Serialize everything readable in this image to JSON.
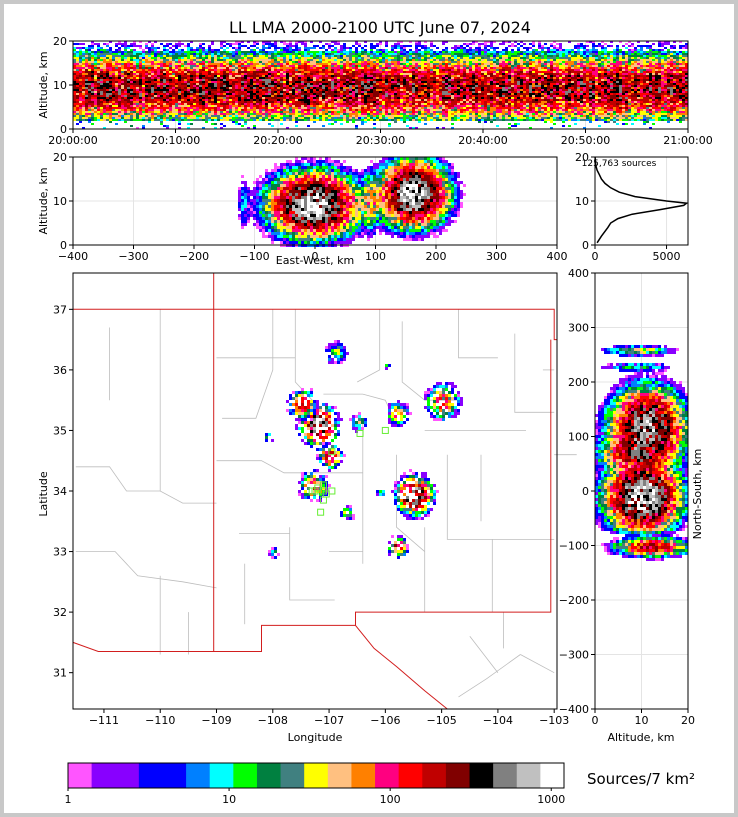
{
  "chart_data": {
    "type": "heatmap",
    "title": "LL LMA 2000-2100 UTC June 07, 2024",
    "source_count_label": "125,763 sources",
    "colorbar": {
      "label": "Sources/7 km²",
      "ticks": [
        "1",
        "10",
        "100",
        "1000"
      ],
      "colors": [
        "#ff55ff",
        "#8800ff",
        "#8800ff",
        "#0000ff",
        "#0000ff",
        "#0080ff",
        "#00ffff",
        "#00ff00",
        "#008040",
        "#408080",
        "#ffff00",
        "#ffc080",
        "#ff8000",
        "#ff0080",
        "#ff0000",
        "#c00000",
        "#800000",
        "#000000",
        "#808080",
        "#c0c0c0",
        "#ffffff"
      ]
    },
    "time_height": {
      "ylabel": "Altitude, km",
      "yticks": [
        "0",
        "10",
        "20"
      ],
      "xticks": [
        "20:00:00",
        "20:10:00",
        "20:20:00",
        "20:30:00",
        "20:40:00",
        "20:50:00",
        "21:00:00"
      ],
      "ylim": [
        0,
        20
      ],
      "xlim_minutes": [
        0,
        60
      ],
      "core_altitude_km": 9.5
    },
    "ew_height": {
      "ylabel": "Altitude, km",
      "xlabel": "East-West, km",
      "xticks": [
        "−400",
        "−300",
        "−200",
        "−100",
        "0",
        "100",
        "200",
        "300",
        "400"
      ],
      "yticks": [
        "0",
        "10",
        "20"
      ],
      "xlim": [
        -400,
        400
      ],
      "ylim": [
        0,
        20
      ],
      "clusters": [
        {
          "x": -5,
          "z": 9.5,
          "w": 90,
          "peak": 1000
        },
        {
          "x": 160,
          "z": 12,
          "w": 70,
          "peak": 1000
        },
        {
          "x": 90,
          "z": 10,
          "w": 25,
          "peak": 60
        },
        {
          "x": -120,
          "z": 10,
          "w": 15,
          "peak": 8
        }
      ]
    },
    "height_hist": {
      "xticks": [
        "0",
        "5000"
      ],
      "yticks": [
        "0",
        "10",
        "20"
      ],
      "xlim": [
        0,
        6500
      ],
      "ylim": [
        0,
        20
      ],
      "profile": [
        [
          0.5,
          150
        ],
        [
          2,
          450
        ],
        [
          4,
          900
        ],
        [
          5,
          1100
        ],
        [
          6,
          1600
        ],
        [
          7,
          2600
        ],
        [
          8,
          4500
        ],
        [
          9,
          6200
        ],
        [
          9.5,
          6400
        ],
        [
          10,
          5000
        ],
        [
          11,
          2800
        ],
        [
          12,
          1700
        ],
        [
          13,
          1100
        ],
        [
          14,
          700
        ],
        [
          15,
          450
        ],
        [
          16,
          300
        ],
        [
          17,
          150
        ],
        [
          18,
          60
        ],
        [
          19,
          25
        ],
        [
          20,
          10
        ]
      ]
    },
    "plan_view": {
      "xlabel": "Longitude",
      "ylabel": "Latitude",
      "xticks": [
        "−111",
        "−110",
        "−109",
        "−108",
        "−107",
        "−106",
        "−105",
        "−104",
        "−103"
      ],
      "yticks": [
        "31",
        "32",
        "33",
        "34",
        "35",
        "36",
        "37"
      ],
      "xlim": [
        -111.55,
        -102.95
      ],
      "ylim": [
        30.4,
        37.6
      ],
      "clusters": [
        {
          "lon": -107.2,
          "lat": 35.1,
          "s": 0.15,
          "peak": 900
        },
        {
          "lon": -107.5,
          "lat": 35.45,
          "s": 0.12,
          "peak": 200
        },
        {
          "lon": -107.0,
          "lat": 34.6,
          "s": 0.1,
          "peak": 250
        },
        {
          "lon": -107.3,
          "lat": 34.1,
          "s": 0.12,
          "peak": 150
        },
        {
          "lon": -106.5,
          "lat": 35.15,
          "s": 0.08,
          "peak": 30
        },
        {
          "lon": -105.5,
          "lat": 33.95,
          "s": 0.15,
          "peak": 800
        },
        {
          "lon": -105.8,
          "lat": 33.1,
          "s": 0.08,
          "peak": 250
        },
        {
          "lon": -105.0,
          "lat": 35.5,
          "s": 0.15,
          "peak": 120
        },
        {
          "lon": -105.8,
          "lat": 35.3,
          "s": 0.1,
          "peak": 80
        },
        {
          "lon": -106.9,
          "lat": 36.3,
          "s": 0.1,
          "peak": 40
        },
        {
          "lon": -106.7,
          "lat": 33.65,
          "s": 0.06,
          "peak": 60
        },
        {
          "lon": -108.0,
          "lat": 33.0,
          "s": 0.05,
          "peak": 30
        },
        {
          "lon": -108.1,
          "lat": 34.9,
          "s": 0.05,
          "peak": 20
        },
        {
          "lon": -106.0,
          "lat": 36.1,
          "s": 0.04,
          "peak": 10
        },
        {
          "lon": -106.1,
          "lat": 34.0,
          "s": 0.05,
          "peak": 15
        }
      ],
      "stations": [
        [
          -107.1,
          34.1
        ],
        [
          -107.2,
          34.05
        ],
        [
          -107.1,
          34.0
        ],
        [
          -107.25,
          34.0
        ],
        [
          -107.05,
          33.95
        ],
        [
          -107.1,
          33.85
        ],
        [
          -107.15,
          33.65
        ],
        [
          -106.95,
          34.0
        ],
        [
          -106.95,
          34.65
        ],
        [
          -106.45,
          34.95
        ],
        [
          -106.0,
          35.0
        ],
        [
          -107.3,
          34.0
        ]
      ]
    },
    "ns_height": {
      "xlabel": "Altitude, km",
      "ylabel": "North-South, km",
      "xticks": [
        "0",
        "10",
        "20"
      ],
      "yticks": [
        "−400",
        "−300",
        "−200",
        "−100",
        "0",
        "100",
        "200",
        "300",
        "400"
      ],
      "xlim": [
        0,
        20
      ],
      "ylim": [
        -400,
        400
      ],
      "clusters": [
        {
          "y": 0,
          "z": 10,
          "h": 30,
          "peak": 900
        },
        {
          "y": -30,
          "z": 10,
          "h": 20,
          "peak": 400
        },
        {
          "y": 120,
          "z": 11,
          "h": 40,
          "peak": 700
        },
        {
          "y": 70,
          "z": 9,
          "h": 25,
          "peak": 300
        },
        {
          "y": -100,
          "z": 12,
          "h": 10,
          "peak": 250
        },
        {
          "y": 260,
          "z": 9,
          "h": 6,
          "peak": 40
        },
        {
          "y": 230,
          "z": 9,
          "h": 5,
          "peak": 20
        },
        {
          "y": -60,
          "z": 10,
          "h": 10,
          "peak": 80
        }
      ]
    }
  }
}
